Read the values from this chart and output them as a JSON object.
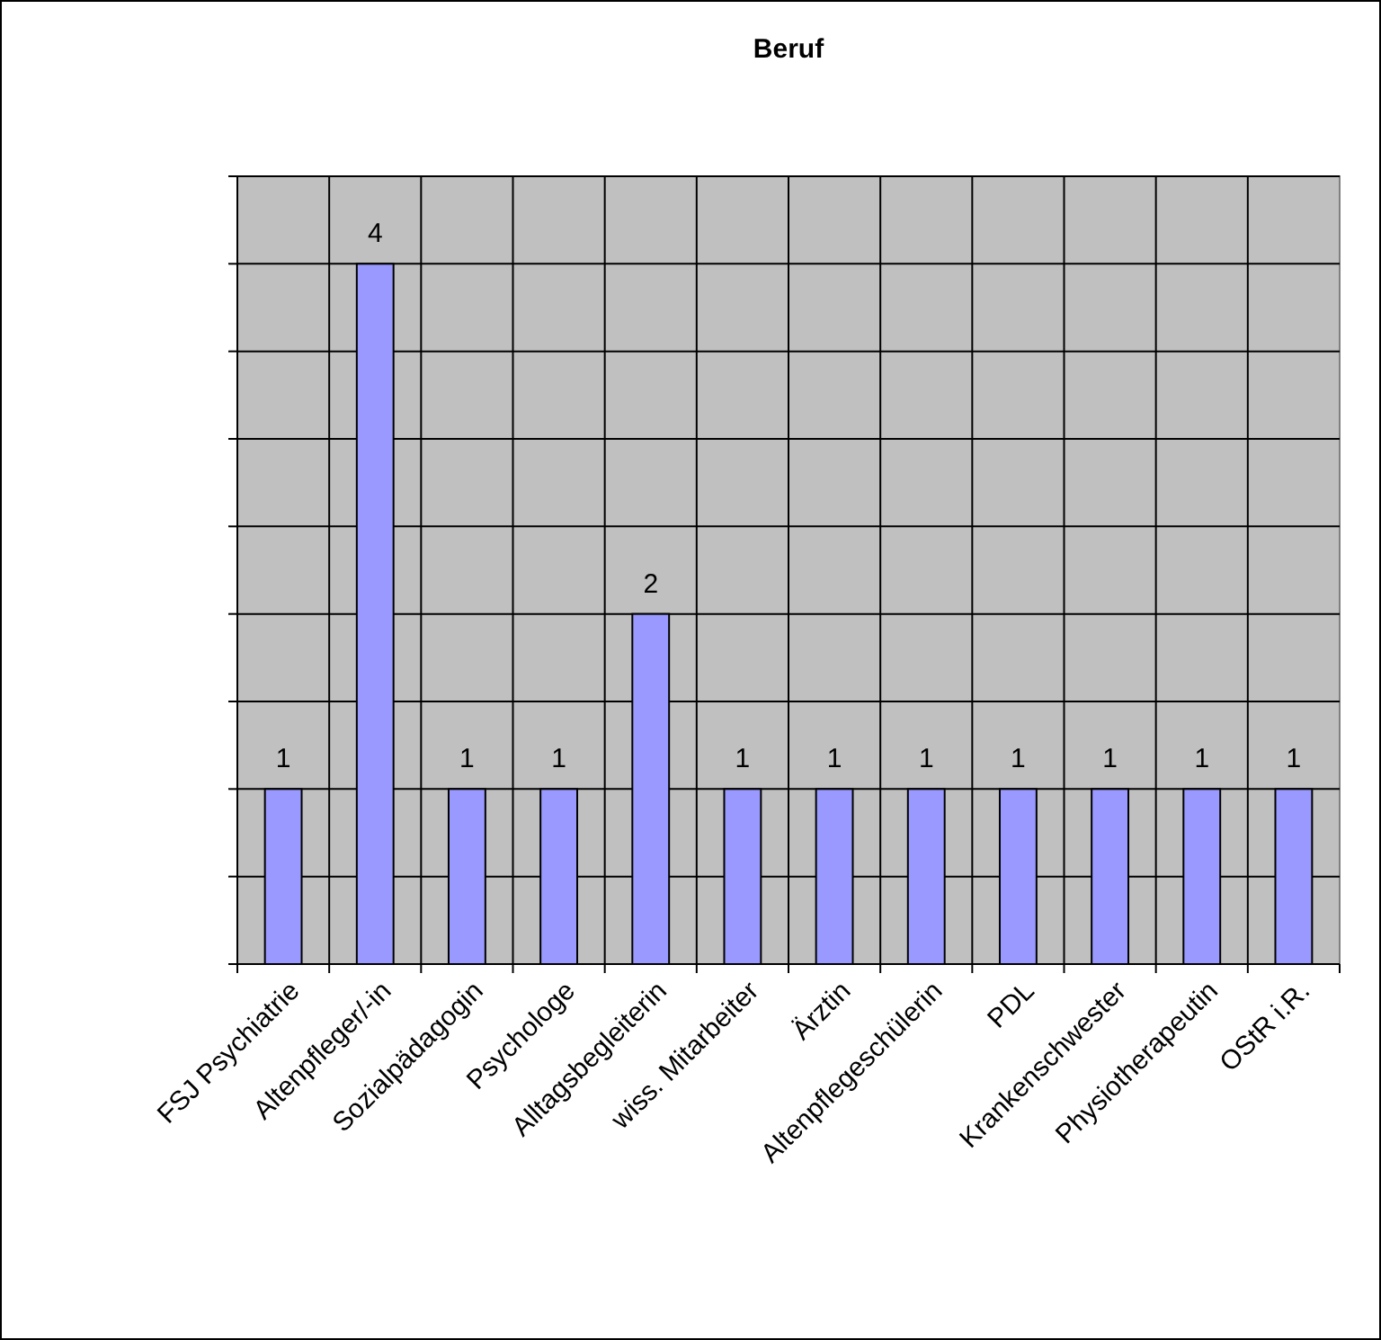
{
  "chart_data": {
    "type": "bar",
    "title": "Beruf",
    "categories": [
      "FSJ Psychiatrie",
      "Altenpfleger/-in",
      "Sozialpädagogin",
      "Psychologe",
      "Alltagsbegleiterin",
      "wiss. Mitarbeiter",
      "Ärztin",
      "Altenpflegeschülerin",
      "PDL",
      "Krankenschwester",
      "Physiotherapeutin",
      "OStR i.R."
    ],
    "values": [
      1,
      4,
      1,
      1,
      2,
      1,
      1,
      1,
      1,
      1,
      1,
      1
    ],
    "color": "#9999ff",
    "ylim": [
      0,
      4.5
    ],
    "yticks": [
      {
        "value": 0,
        "label": null
      },
      {
        "value": 0.5,
        "label": null
      },
      {
        "value": 1,
        "label": null
      },
      {
        "value": 1.5,
        "label": null
      },
      {
        "value": 2,
        "label": null
      },
      {
        "value": 2.5,
        "label": null
      },
      {
        "value": 3,
        "label": null
      },
      {
        "value": 3.5,
        "label": null
      },
      {
        "value": 4,
        "label": null
      },
      {
        "value": 4.5,
        "label": null
      }
    ],
    "grid": "y",
    "data_labels": true,
    "tick_labels": "x"
  }
}
